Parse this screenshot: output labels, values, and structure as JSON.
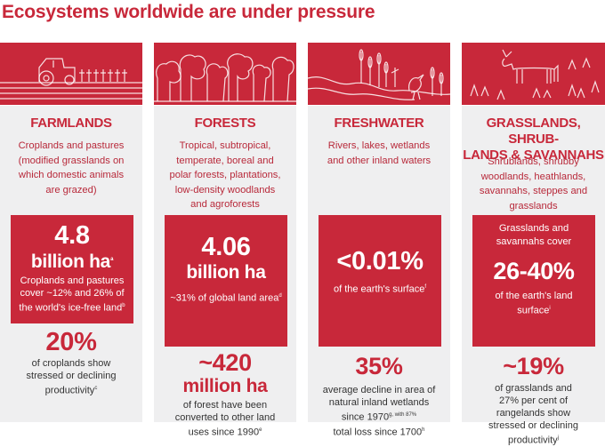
{
  "title": "Ecosystems worldwide are under pressure",
  "colors": {
    "accent": "#c8283a",
    "panel": "#efeff0",
    "text": "#333333"
  },
  "columns": [
    {
      "icon": "tractor-field-icon",
      "heading": [
        "FARMLANDS"
      ],
      "description": [
        "Croplands and pastures",
        "(modified grasslands on",
        "which domestic animals",
        "are grazed)"
      ],
      "box_top": [],
      "box_big": [
        "4.8",
        "billion ha"
      ],
      "box_big_sup": "a",
      "box_text": [
        "Croplands and pastures",
        "cover ~12% and 26% of",
        "the world's ice-free land"
      ],
      "box_text_sup": "b",
      "stat": [
        "20%"
      ],
      "stat_text": [
        "of croplands show",
        "stressed or declining",
        "productivity"
      ],
      "stat_text_sup": "c"
    },
    {
      "icon": "forest-trees-icon",
      "heading": [
        "FORESTS"
      ],
      "description": [
        "Tropical, subtropical,",
        "temperate, boreal and",
        "polar forests,  plantations,",
        "low-density woodlands",
        "and agroforests"
      ],
      "box_top": [],
      "box_big": [
        "4.06",
        "billion ha"
      ],
      "box_big_sup": "",
      "box_text": [
        "~31% of global land area"
      ],
      "box_text_sup": "d",
      "stat": [
        "~420",
        "million ha"
      ],
      "stat_text": [
        "of forest have been",
        "converted to other land",
        "uses since 1990"
      ],
      "stat_text_sup": "e"
    },
    {
      "icon": "wetland-heron-icon",
      "heading": [
        "FRESHWATER"
      ],
      "description": [
        "Rivers, lakes, wetlands",
        "and other inland waters"
      ],
      "box_top": [],
      "box_big": [
        "<0.01%"
      ],
      "box_big_sup": "",
      "box_text": [
        "of the earth's surface"
      ],
      "box_text_sup": "f",
      "stat": [
        "35%"
      ],
      "stat_text": [
        "average decline in area of",
        "natural inland wetlands",
        "since 1970",
        "total loss since 1700"
      ],
      "stat_text_sups": [
        "g, with 87%",
        "h"
      ]
    },
    {
      "icon": "grassland-grazer-icon",
      "heading": [
        "GRASSLANDS, SHRUB-",
        "LANDS & SAVANNAHS"
      ],
      "description": [
        "Shrublands, shrubby",
        "woodlands, heathlands,",
        "savannahs, steppes and",
        "grasslands"
      ],
      "box_top": [
        "Grasslands and",
        "savannahs cover"
      ],
      "box_big": [
        "26-40%"
      ],
      "box_big_sup": "",
      "box_text": [
        "of the earth's land",
        "surface"
      ],
      "box_text_sup": "i",
      "stat": [
        "~19%"
      ],
      "stat_text": [
        "of grasslands and",
        "27% per cent of",
        "rangelands show",
        "stressed or declining",
        "productivity"
      ],
      "stat_text_sup": "j"
    }
  ]
}
